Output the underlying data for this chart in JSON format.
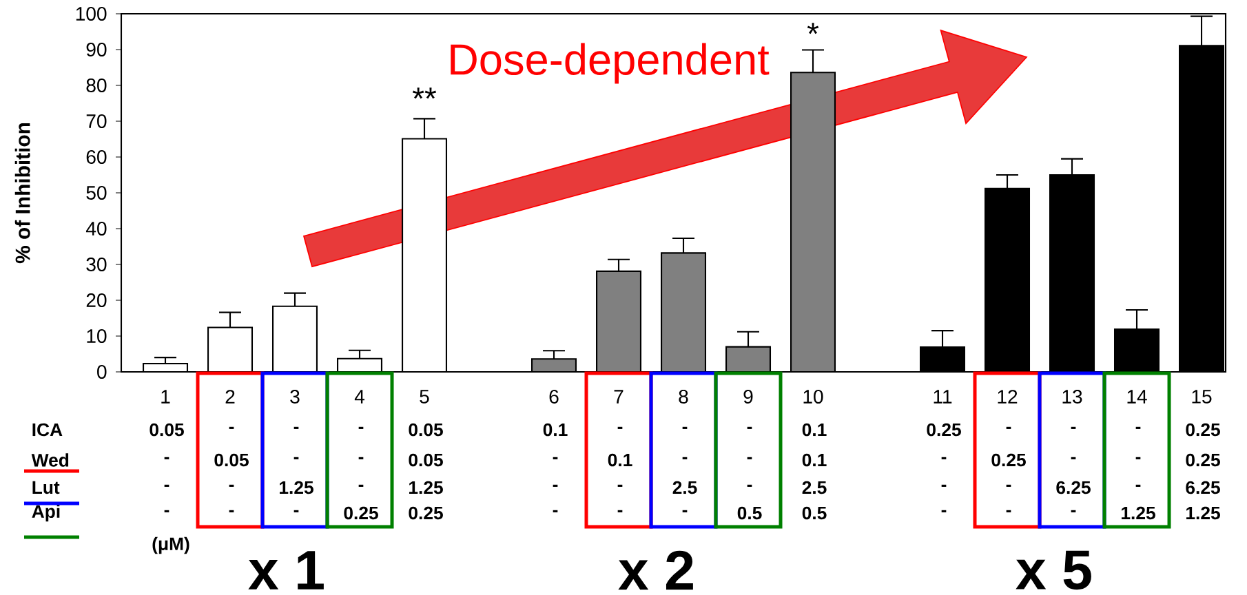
{
  "chart_data": {
    "type": "bar",
    "ylabel": "% of Inhibition",
    "categories": [
      "1",
      "2",
      "3",
      "4",
      "5",
      null,
      "6",
      "7",
      "8",
      "9",
      "10",
      null,
      "11",
      "12",
      "13",
      "14",
      "15"
    ],
    "values": [
      2.3,
      12.4,
      18.3,
      3.7,
      65.1,
      null,
      3.6,
      28.1,
      33.2,
      7.0,
      83.6,
      null,
      6.9,
      51.2,
      55.0,
      11.9,
      91.1
    ],
    "colors": [
      "#ffffff",
      "#ffffff",
      "#ffffff",
      "#ffffff",
      "#ffffff",
      null,
      "#808080",
      "#808080",
      "#808080",
      "#808080",
      "#808080",
      null,
      "#000000",
      "#000000",
      "#000000",
      "#000000",
      "#000000"
    ],
    "errors": [
      [
        2.3,
        4.0
      ],
      [
        12.4,
        16.6
      ],
      [
        18.3,
        22.0
      ],
      [
        3.7,
        6.0
      ],
      [
        65.1,
        70.7
      ],
      null,
      [
        3.6,
        5.9
      ],
      [
        28.1,
        31.4
      ],
      [
        33.2,
        37.3
      ],
      [
        7.0,
        11.2
      ],
      [
        83.6,
        89.9
      ],
      null,
      [
        6.9,
        11.5
      ],
      [
        51.2,
        55.0
      ],
      [
        55.0,
        59.5
      ],
      [
        11.9,
        17.3
      ],
      [
        91.1,
        99.3
      ]
    ],
    "ylim": [
      0,
      100
    ],
    "yticks": [
      0,
      10,
      20,
      30,
      40,
      50,
      60,
      70,
      80,
      90,
      100
    ],
    "annotations": [
      "Dose-dependent",
      "**",
      "*",
      "ICA",
      "Wed",
      "Lut",
      "Api",
      "(μM)",
      "x 1",
      "x 2",
      "x 5",
      "0.05",
      "-",
      "-",
      "-",
      "0.05",
      "0.1",
      "-",
      "-",
      "-",
      "0.1",
      "0.25",
      "-",
      "-",
      "-",
      "0.25",
      "-",
      "0.05",
      "-",
      "-",
      "0.05",
      "-",
      "0.1",
      "-",
      "-",
      "0.1",
      "-",
      "0.25",
      "-",
      "-",
      "0.25",
      "-",
      "-",
      "1.25",
      "-",
      "1.25",
      "-",
      "-",
      "2.5",
      "-",
      "2.5",
      "-",
      "-",
      "6.25",
      "-",
      "6.25",
      "-",
      "-",
      "-",
      "0.25",
      "0.25",
      "-",
      "-",
      "-",
      "0.5",
      "0.5",
      "-",
      "-",
      "-",
      "1.25",
      "1.25"
    ]
  }
}
